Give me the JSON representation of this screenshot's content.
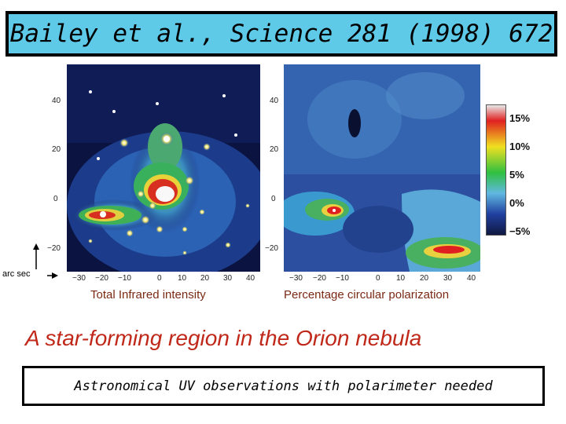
{
  "title": "Bailey et al., Science 281 (1998) 672",
  "left_panel": {
    "caption": "Total Infrared intensity",
    "y_ticks": [
      "40",
      "20",
      "0",
      "−20"
    ],
    "x_ticks": [
      "−30",
      "−20",
      "−10",
      "0",
      "10",
      "20",
      "30",
      "40"
    ]
  },
  "right_panel": {
    "caption": "Percentage circular polarization",
    "y_ticks": [
      "40",
      "20",
      "0",
      "−20"
    ],
    "x_ticks": [
      "−30",
      "−20",
      "−10",
      "0",
      "10",
      "20",
      "30",
      "40"
    ]
  },
  "colorbar": {
    "labels": [
      "15%",
      "10%",
      "5%",
      "0%",
      "−5%"
    ],
    "colors": [
      "#e8e8e8",
      "#e02020",
      "#f0e020",
      "#30c040",
      "#60b8e0",
      "#2040a0",
      "#101840"
    ]
  },
  "axis_unit": "arc sec",
  "headline": "A star-forming region in the Orion nebula",
  "footer_box": "Astronomical UV observations with polarimeter needed"
}
